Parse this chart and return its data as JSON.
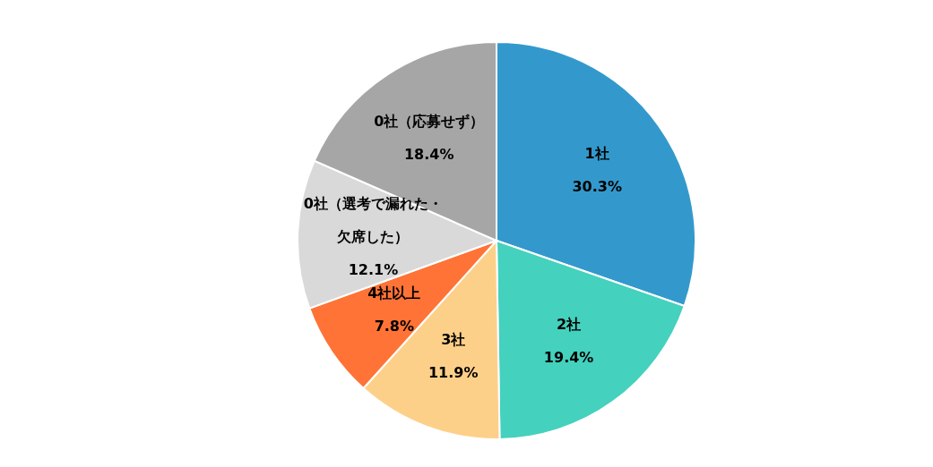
{
  "chart_data": {
    "type": "pie",
    "categories": [
      "1社",
      "2社",
      "3社",
      "4社以上",
      "0社（選考で漏れた・欠席した）",
      "0社（応募せず）"
    ],
    "values": [
      30.3,
      19.4,
      11.9,
      7.8,
      12.1,
      18.4
    ],
    "value_labels": [
      "30.3%",
      "19.4%",
      "11.9%",
      "7.8%",
      "12.1%",
      "18.4%"
    ],
    "colors": [
      "#3399cc",
      "#44d1bd",
      "#fdd089",
      "#ff7336",
      "#d9d9d9",
      "#a6a6a6"
    ],
    "legend": false
  }
}
